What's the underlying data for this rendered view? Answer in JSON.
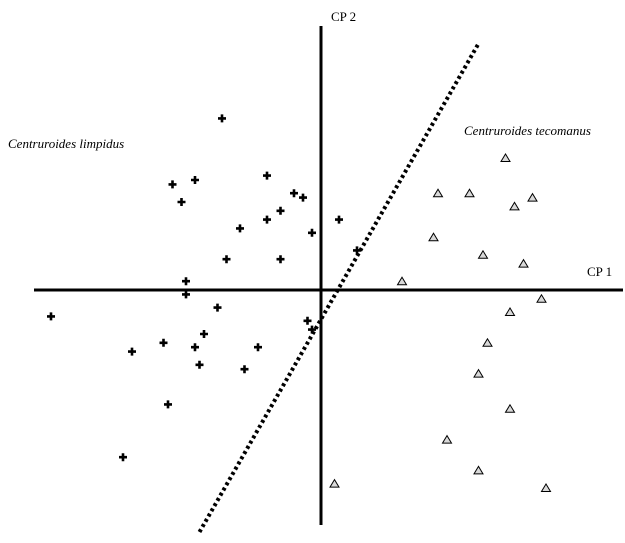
{
  "chart_data": {
    "type": "scatter",
    "xlabel": "CP 1",
    "ylabel": "CP 2",
    "xlim": [
      -6.5,
      7
    ],
    "ylim": [
      -5.5,
      6.2
    ],
    "axes_cross_at_origin": true,
    "grid": false,
    "series": [
      {
        "name": "Centruroides limpidus",
        "marker": "plus",
        "color": "#000000",
        "points": [
          [
            -2.2,
            3.9
          ],
          [
            -2.8,
            2.5
          ],
          [
            -3.3,
            2.4
          ],
          [
            -3.1,
            2.0
          ],
          [
            -1.2,
            2.6
          ],
          [
            -0.6,
            2.2
          ],
          [
            -0.4,
            2.1
          ],
          [
            -0.9,
            1.8
          ],
          [
            -1.2,
            1.6
          ],
          [
            -1.8,
            1.4
          ],
          [
            -0.2,
            1.3
          ],
          [
            0.4,
            1.6
          ],
          [
            -2.1,
            0.7
          ],
          [
            -0.9,
            0.7
          ],
          [
            -3.0,
            0.2
          ],
          [
            -3.0,
            -0.1
          ],
          [
            -2.3,
            -0.4
          ],
          [
            -6.0,
            -0.6
          ],
          [
            -0.3,
            -0.7
          ],
          [
            -0.2,
            -0.9
          ],
          [
            -2.6,
            -1.0
          ],
          [
            -3.5,
            -1.2
          ],
          [
            -2.8,
            -1.3
          ],
          [
            -1.4,
            -1.3
          ],
          [
            -4.2,
            -1.4
          ],
          [
            -2.7,
            -1.7
          ],
          [
            -1.7,
            -1.8
          ],
          [
            -3.4,
            -2.6
          ],
          [
            -4.4,
            -3.8
          ],
          [
            0.8,
            0.9
          ]
        ]
      },
      {
        "name": "Centruroides tecomanus",
        "marker": "triangle",
        "color": "#000000",
        "points": [
          [
            4.1,
            3.0
          ],
          [
            2.6,
            2.2
          ],
          [
            3.3,
            2.2
          ],
          [
            4.3,
            1.9
          ],
          [
            4.7,
            2.1
          ],
          [
            2.5,
            1.2
          ],
          [
            3.6,
            0.8
          ],
          [
            4.5,
            0.6
          ],
          [
            1.8,
            0.2
          ],
          [
            4.9,
            -0.2
          ],
          [
            4.2,
            -0.5
          ],
          [
            3.7,
            -1.2
          ],
          [
            3.5,
            -1.9
          ],
          [
            4.2,
            -2.7
          ],
          [
            2.8,
            -3.4
          ],
          [
            3.5,
            -4.1
          ],
          [
            5.0,
            -4.5
          ],
          [
            0.3,
            -4.4
          ]
        ]
      }
    ],
    "separator_line": {
      "style": "dotted",
      "points": [
        [
          -2.7,
          -5.5
        ],
        [
          3.5,
          5.6
        ]
      ]
    }
  },
  "labels": {
    "x_axis": "CP 1",
    "y_axis": "CP 2",
    "group_left": "Centruroides limpidus",
    "group_right": "Centruroides tecomanus"
  }
}
